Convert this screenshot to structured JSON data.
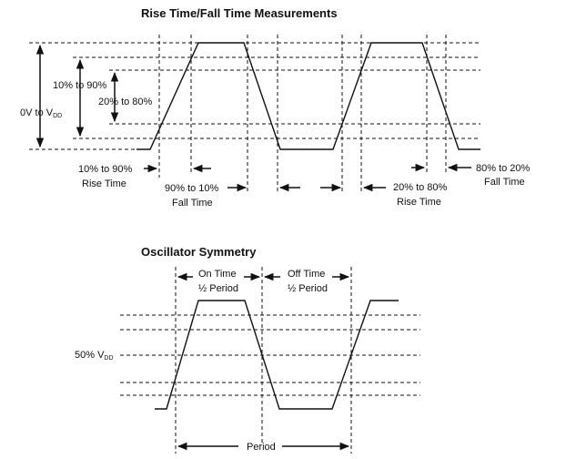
{
  "diagram1": {
    "title": "Rise Time/Fall Time Measurements",
    "vdd_label_prefix": "0V to V",
    "vdd_sub": "DD",
    "label_10_90": "10% to 90%",
    "label_20_80": "20% to 80%",
    "rise_label_line1": "10% to 90%",
    "rise_label_line2": "Rise Time",
    "fall_label_line1": "90% to 10%",
    "fall_label_line2": "Fall Time",
    "rise2_label_line1": "20% to 80%",
    "rise2_label_line2": "Rise Time",
    "fall2_label_line1": "80% to 20%",
    "fall2_label_line2": "Fall Time"
  },
  "diagram2": {
    "title": "Oscillator Symmetry",
    "on_time_line1": "On Time",
    "on_time_line2": "½ Period",
    "off_time_line1": "Off Time",
    "off_time_line2": "½ Period",
    "vdd50_prefix": "50% V",
    "vdd50_sub": "DD",
    "period_label": "Period"
  }
}
